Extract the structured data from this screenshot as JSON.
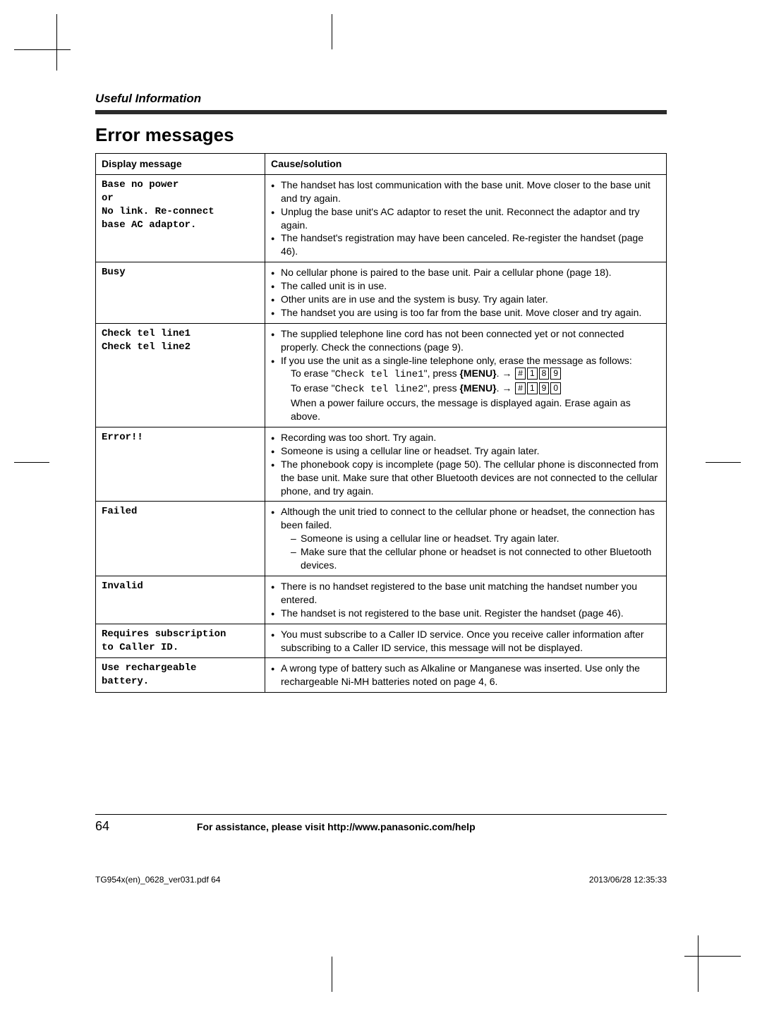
{
  "section_label": "Useful Information",
  "title": "Error messages",
  "headers": {
    "col1": "Display message",
    "col2": "Cause/solution"
  },
  "rows": [
    {
      "msg_lines": [
        "Base no power",
        "or",
        "No link. Re-connect",
        "base AC adaptor."
      ],
      "items": [
        {
          "type": "li",
          "text": "The handset has lost communication with the base unit. Move closer to the base unit and try again."
        },
        {
          "type": "li",
          "text": "Unplug the base unit's AC adaptor to reset the unit. Reconnect the adaptor and try again."
        },
        {
          "type": "li",
          "text": "The handset's registration may have been canceled. Re-register the handset (page 46)."
        }
      ]
    },
    {
      "msg_lines": [
        "Busy"
      ],
      "items": [
        {
          "type": "li",
          "text": "No cellular phone is paired to the base unit. Pair a cellular phone (page 18)."
        },
        {
          "type": "li",
          "text": "The called unit is in use."
        },
        {
          "type": "li",
          "text": "Other units are in use and the system is busy. Try again later."
        },
        {
          "type": "li",
          "text": "The handset you are using is too far from the base unit. Move closer and try again."
        }
      ]
    },
    {
      "msg_lines": [
        "Check tel line1",
        "Check tel line2"
      ],
      "items": [
        {
          "type": "li",
          "text": "The supplied telephone line cord has not been connected yet or not connected properly. Check the connections (page 9)."
        },
        {
          "type": "li",
          "text": "If you use the unit as a single-line telephone only, erase the message as follows:"
        },
        {
          "type": "erase",
          "label": "Check tel line1",
          "keys": [
            "#",
            "1",
            "8",
            "9"
          ]
        },
        {
          "type": "erase",
          "label": "Check tel line2",
          "keys": [
            "#",
            "1",
            "9",
            "0"
          ]
        },
        {
          "type": "para",
          "text": "When a power failure occurs, the message is displayed again. Erase again as above."
        }
      ]
    },
    {
      "msg_lines": [
        "Error!!"
      ],
      "items": [
        {
          "type": "li",
          "text": "Recording was too short. Try again."
        },
        {
          "type": "li",
          "text": "Someone is using a cellular line or headset. Try again later."
        },
        {
          "type": "li",
          "text": "The phonebook copy is incomplete (page 50). The cellular phone is disconnected from the base unit. Make sure that other Bluetooth devices are not connected to the cellular phone, and try again."
        }
      ]
    },
    {
      "msg_lines": [
        "Failed"
      ],
      "items": [
        {
          "type": "li",
          "text": "Although the unit tried to connect to the cellular phone or headset, the connection has been failed."
        },
        {
          "type": "sub",
          "text": "Someone is using a cellular line or headset. Try again later."
        },
        {
          "type": "sub",
          "text": "Make sure that the cellular phone or headset is not connected to other Bluetooth devices."
        }
      ]
    },
    {
      "msg_lines": [
        "Invalid"
      ],
      "items": [
        {
          "type": "li",
          "text": "There is no handset registered to the base unit matching the handset number you entered."
        },
        {
          "type": "li",
          "text": "The handset is not registered to the base unit. Register the handset (page 46)."
        }
      ]
    },
    {
      "msg_lines": [
        "Requires subscription",
        "to Caller ID."
      ],
      "items": [
        {
          "type": "li",
          "text": "You must subscribe to a Caller ID service. Once you receive caller information after subscribing to a Caller ID service, this message will not be displayed."
        }
      ]
    },
    {
      "msg_lines": [
        "Use rechargeable",
        "battery."
      ],
      "items": [
        {
          "type": "li",
          "text": "A wrong type of battery such as Alkaline or Manganese was inserted. Use only the rechargeable Ni-MH batteries noted on page 4, 6."
        }
      ]
    }
  ],
  "erase_prefix": "To erase \"",
  "erase_mid": "\", press ",
  "erase_menu": "MENU",
  "erase_arrow": ". → ",
  "footer": {
    "page": "64",
    "assist": "For assistance, please visit http://www.panasonic.com/help"
  },
  "printmeta": {
    "left": "TG954x(en)_0628_ver031.pdf   64",
    "right": "2013/06/28   12:35:33"
  }
}
